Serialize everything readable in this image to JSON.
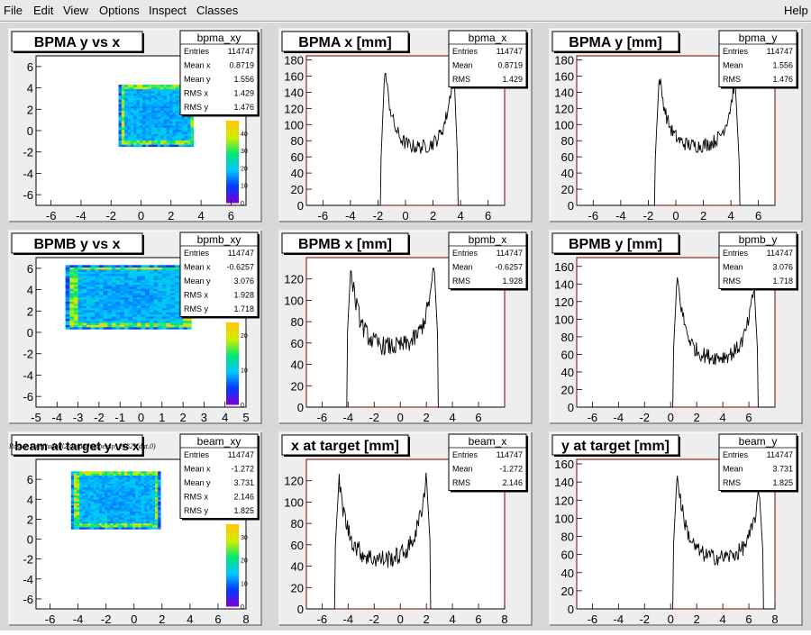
{
  "menu": {
    "items": [
      "File",
      "Edit",
      "View",
      "Options",
      "Inspect",
      "Classes"
    ],
    "help": "Help"
  },
  "raster_label": "Raster Size (/adaql2/data4/happexsp_24829.dat.0)",
  "colors": {
    "hist_line": "#000000",
    "axis_frame": "#800000",
    "pad_bg": "#eeeeee",
    "frame": "#d8d8d8"
  },
  "pads": [
    {
      "kind": "2d",
      "title": "BPMA y vs x",
      "stats": {
        "name": "bpma_xy",
        "rows": [
          [
            "Entries",
            "114747"
          ],
          [
            "Mean x",
            "0.8719"
          ],
          [
            "Mean y",
            "1.556"
          ],
          [
            "RMS x",
            "1.429"
          ],
          [
            "RMS y",
            "1.476"
          ]
        ]
      },
      "palette_ticks": [
        "0",
        "10",
        "20",
        "30",
        "40"
      ],
      "chart_data": {
        "type": "heatmap",
        "x_range": [
          -7,
          7
        ],
        "y_range": [
          -7,
          7
        ],
        "x_ticks": [
          "-6",
          "-4",
          "-2",
          "0",
          "2",
          "4",
          "6"
        ],
        "y_ticks": [
          "-6",
          "-4",
          "-2",
          "0",
          "2",
          "4",
          "6"
        ],
        "region": {
          "x": [
            -1.5,
            3.5
          ],
          "y": [
            -1.5,
            4.3
          ]
        }
      }
    },
    {
      "kind": "1d",
      "title": "BPMA x [mm]",
      "stats": {
        "name": "bpma_x",
        "rows": [
          [
            "Entries",
            "114747"
          ],
          [
            "Mean",
            "0.8719"
          ],
          [
            "RMS",
            "1.429"
          ]
        ]
      },
      "chart_data": {
        "type": "line",
        "x_range": [
          -7.2,
          7.2
        ],
        "y_range": [
          0,
          185
        ],
        "x_ticks": [
          "-6",
          "-4",
          "-2",
          "0",
          "2",
          "4",
          "6"
        ],
        "y_ticks": [
          "0",
          "20",
          "40",
          "60",
          "80",
          "100",
          "120",
          "140",
          "160",
          "180"
        ],
        "profile": {
          "lo": -1.5,
          "hi": 3.5,
          "peak_left": 172,
          "peak_right": 175,
          "floor": 70
        }
      }
    },
    {
      "kind": "1d",
      "title": "BPMA y [mm]",
      "stats": {
        "name": "bpma_y",
        "rows": [
          [
            "Entries",
            "114747"
          ],
          [
            "Mean",
            "1.556"
          ],
          [
            "RMS",
            "1.476"
          ]
        ]
      },
      "chart_data": {
        "type": "line",
        "x_range": [
          -7.2,
          7.2
        ],
        "y_range": [
          0,
          185
        ],
        "x_ticks": [
          "-6",
          "-4",
          "-2",
          "0",
          "2",
          "4",
          "6"
        ],
        "y_ticks": [
          "0",
          "20",
          "40",
          "60",
          "80",
          "100",
          "120",
          "140",
          "160",
          "180"
        ],
        "profile": {
          "lo": -1.2,
          "hi": 4.3,
          "peak_left": 162,
          "peak_right": 158,
          "floor": 72
        }
      }
    },
    {
      "kind": "2d",
      "title": "BPMB y vs x",
      "stats": {
        "name": "bpmb_xy",
        "rows": [
          [
            "Entries",
            "114747"
          ],
          [
            "Mean x",
            "-0.6257"
          ],
          [
            "Mean y",
            "3.076"
          ],
          [
            "RMS x",
            "1.928"
          ],
          [
            "RMS y",
            "1.718"
          ]
        ]
      },
      "palette_ticks": [
        "0",
        "10",
        "20"
      ],
      "chart_data": {
        "type": "heatmap",
        "x_range": [
          -5,
          5
        ],
        "y_range": [
          -7,
          7
        ],
        "x_ticks": [
          "-5",
          "-4",
          "-3",
          "-2",
          "-1",
          "0",
          "1",
          "2",
          "3",
          "4",
          "5"
        ],
        "y_ticks": [
          "-6",
          "-4",
          "-2",
          "0",
          "2",
          "4",
          "6"
        ],
        "region": {
          "x": [
            -3.6,
            2.4
          ],
          "y": [
            0.3,
            6.2
          ]
        }
      }
    },
    {
      "kind": "1d",
      "title": "BPMB x [mm]",
      "stats": {
        "name": "bpmb_x",
        "rows": [
          [
            "Entries",
            "114747"
          ],
          [
            "Mean",
            "-0.6257"
          ],
          [
            "RMS",
            "1.928"
          ]
        ]
      },
      "chart_data": {
        "type": "line",
        "x_range": [
          -7.2,
          8
        ],
        "y_range": [
          0,
          140
        ],
        "x_ticks": [
          "-6",
          "-4",
          "-2",
          "0",
          "2",
          "4",
          "6"
        ],
        "y_ticks": [
          "0",
          "20",
          "40",
          "60",
          "80",
          "100",
          "120"
        ],
        "profile": {
          "lo": -3.8,
          "hi": 2.6,
          "peak_left": 130,
          "peak_right": 132,
          "floor": 55
        }
      }
    },
    {
      "kind": "1d",
      "title": "BPMB y [mm]",
      "stats": {
        "name": "bpmb_y",
        "rows": [
          [
            "Entries",
            "114747"
          ],
          [
            "Mean",
            "3.076"
          ],
          [
            "RMS",
            "1.718"
          ]
        ]
      },
      "chart_data": {
        "type": "line",
        "x_range": [
          -7.2,
          8
        ],
        "y_range": [
          0,
          170
        ],
        "x_ticks": [
          "-6",
          "-4",
          "-2",
          "0",
          "2",
          "4",
          "6"
        ],
        "y_ticks": [
          "0",
          "20",
          "40",
          "60",
          "80",
          "100",
          "120",
          "140",
          "160"
        ],
        "profile": {
          "lo": 0.5,
          "hi": 6.4,
          "peak_left": 150,
          "peak_right": 138,
          "floor": 55
        }
      }
    },
    {
      "kind": "2d",
      "title": "beam at target y vs x",
      "stats": {
        "name": "beam_xy",
        "rows": [
          [
            "Entries",
            "114747"
          ],
          [
            "Mean x",
            "-1.272"
          ],
          [
            "Mean y",
            "3.731"
          ],
          [
            "RMS x",
            "2.146"
          ],
          [
            "RMS y",
            "1.825"
          ]
        ]
      },
      "palette_ticks": [
        "0",
        "10",
        "20",
        "30"
      ],
      "chart_data": {
        "type": "heatmap",
        "x_range": [
          -7,
          8
        ],
        "y_range": [
          -7,
          8
        ],
        "x_ticks": [
          "-6",
          "-4",
          "-2",
          "0",
          "2",
          "4",
          "6",
          "8"
        ],
        "y_ticks": [
          "-6",
          "-4",
          "-2",
          "0",
          "2",
          "4",
          "6"
        ],
        "region": {
          "x": [
            -4.5,
            1.8
          ],
          "y": [
            1,
            6.8
          ]
        }
      }
    },
    {
      "kind": "1d",
      "title": "x at target [mm]",
      "stats": {
        "name": "beam_x",
        "rows": [
          [
            "Entries",
            "114747"
          ],
          [
            "Mean",
            "-1.272"
          ],
          [
            "RMS",
            "2.146"
          ]
        ]
      },
      "chart_data": {
        "type": "line",
        "x_range": [
          -7.2,
          8
        ],
        "y_range": [
          0,
          140
        ],
        "x_ticks": [
          "-6",
          "-4",
          "-2",
          "0",
          "2",
          "4",
          "6",
          "8"
        ],
        "y_ticks": [
          "0",
          "20",
          "40",
          "60",
          "80",
          "100",
          "120"
        ],
        "profile": {
          "lo": -4.7,
          "hi": 2.0,
          "peak_left": 120,
          "peak_right": 125,
          "floor": 45
        }
      }
    },
    {
      "kind": "1d",
      "title": "y at target [mm]",
      "stats": {
        "name": "beam_y",
        "rows": [
          [
            "Entries",
            "114747"
          ],
          [
            "Mean",
            "3.731"
          ],
          [
            "RMS",
            "1.825"
          ]
        ]
      },
      "chart_data": {
        "type": "line",
        "x_range": [
          -7.2,
          8
        ],
        "y_range": [
          0,
          165
        ],
        "x_ticks": [
          "-6",
          "-4",
          "-2",
          "0",
          "2",
          "4",
          "6",
          "8"
        ],
        "y_ticks": [
          "0",
          "20",
          "40",
          "60",
          "80",
          "100",
          "120",
          "140",
          "160"
        ],
        "profile": {
          "lo": 0.5,
          "hi": 6.8,
          "peak_left": 150,
          "peak_right": 130,
          "floor": 55
        }
      }
    }
  ]
}
